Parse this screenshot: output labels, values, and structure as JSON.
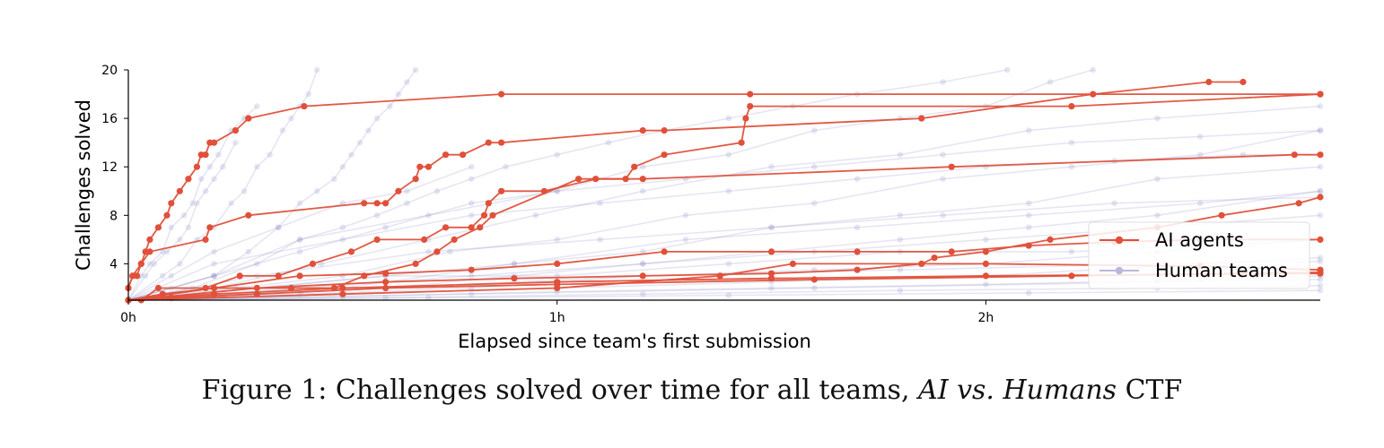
{
  "chart_data": {
    "type": "line",
    "xlabel": "Elapsed since team's first submission",
    "ylabel": "Challenges solved",
    "x_unit": "hours",
    "xlim": [
      0,
      2.78
    ],
    "ylim": [
      1,
      20
    ],
    "x_ticks": [
      {
        "value": 0,
        "label": "0h"
      },
      {
        "value": 1,
        "label": "1h"
      },
      {
        "value": 2,
        "label": "2h"
      }
    ],
    "y_ticks": [
      4,
      8,
      12,
      16,
      20
    ],
    "grid": false,
    "legend_position": "lower-right",
    "series_colors": {
      "ai": "#e0503a",
      "human": "#8e8ec8"
    },
    "legend": [
      {
        "label": "AI agents",
        "color": "#e0503a"
      },
      {
        "label": "Human teams",
        "color": "#b8b8dc"
      }
    ],
    "series": [
      {
        "name": "AI agents",
        "group": "ai",
        "x": [
          0,
          0.01,
          0.03,
          0.04,
          0.05,
          0.07,
          0.09,
          0.1,
          0.12,
          0.14,
          0.16,
          0.17,
          0.18,
          0.19,
          0.2,
          0.25,
          0.28
        ],
        "y": [
          2,
          3,
          4,
          5,
          6,
          7,
          8,
          9,
          10,
          11,
          12,
          13,
          13,
          14,
          14,
          15,
          16
        ]
      },
      {
        "name": "AI agents",
        "group": "ai",
        "x": [
          0.28,
          0.41,
          0.87,
          1.45,
          2.78
        ],
        "y": [
          16,
          17,
          18,
          18,
          18
        ]
      },
      {
        "name": "AI agents",
        "group": "ai",
        "x": [
          0,
          0.01,
          0.02,
          0.03,
          0.05,
          0.18,
          0.19,
          0.28,
          0.55,
          0.58,
          0.6,
          0.63,
          0.67,
          0.68,
          0.7,
          0.74,
          0.78,
          0.84,
          0.87,
          1.2,
          1.25,
          1.85,
          2.25,
          2.52,
          2.6
        ],
        "y": [
          2,
          3,
          3,
          4,
          5,
          6,
          7,
          8,
          9,
          9,
          9,
          10,
          11,
          12,
          12,
          13,
          13,
          14,
          14,
          15,
          15,
          16,
          18,
          19,
          19
        ]
      },
      {
        "name": "AI agents",
        "group": "ai",
        "x": [
          0,
          0.03,
          0.07,
          0.18,
          0.26,
          0.35,
          0.43,
          0.52,
          0.58,
          0.69,
          0.74,
          0.8,
          0.83,
          0.84,
          0.87,
          0.97,
          1.09,
          1.16,
          1.18,
          1.25,
          1.43,
          1.44,
          1.45,
          2.2,
          2.78
        ],
        "y": [
          1,
          1,
          2,
          2,
          3,
          3,
          4,
          5,
          6,
          6,
          7,
          7,
          8,
          9,
          10,
          10,
          11,
          11,
          12,
          13,
          14,
          16,
          17,
          17,
          18
        ]
      },
      {
        "name": "AI agents",
        "group": "ai",
        "x": [
          0,
          0.08,
          0.2,
          0.38,
          0.48,
          0.55,
          0.67,
          0.72,
          0.76,
          0.82,
          0.85,
          1.05,
          1.2,
          1.92,
          2.72,
          2.78
        ],
        "y": [
          1,
          1.5,
          2,
          2,
          2,
          3,
          4,
          5,
          6,
          7,
          8,
          11,
          11,
          12,
          13,
          13
        ]
      },
      {
        "name": "AI agents",
        "group": "ai",
        "x": [
          0,
          0.2,
          0.4,
          0.6,
          0.8,
          1.0,
          1.25,
          1.5,
          1.7,
          1.92,
          2.1,
          2.3,
          2.5,
          2.78
        ],
        "y": [
          1,
          2,
          3,
          3.2,
          3.5,
          4,
          5,
          5,
          5,
          5,
          5.5,
          5.8,
          6,
          6
        ]
      },
      {
        "name": "AI agents",
        "group": "ai",
        "x": [
          0,
          0.3,
          0.6,
          0.9,
          1.2,
          1.5,
          1.7,
          1.85,
          1.88,
          2.0,
          2.15,
          2.4,
          2.55,
          2.73,
          2.78
        ],
        "y": [
          1,
          2,
          2.5,
          2.8,
          3,
          3.2,
          3.5,
          4,
          4.5,
          5,
          6,
          7,
          8,
          9,
          9.5
        ]
      },
      {
        "name": "AI agents",
        "group": "ai",
        "x": [
          0,
          0.5,
          1.0,
          1.38,
          1.55,
          2.0,
          2.5,
          2.78
        ],
        "y": [
          1,
          1.5,
          2,
          3,
          4,
          4,
          3.8,
          3.5
        ]
      },
      {
        "name": "AI agents",
        "group": "ai",
        "x": [
          0,
          0.2,
          0.5,
          1.0,
          1.5,
          2.0,
          2.78
        ],
        "y": [
          1,
          1.5,
          2,
          2.5,
          2.8,
          3,
          3.2
        ]
      },
      {
        "name": "AI agents",
        "group": "ai",
        "x": [
          0,
          0.1,
          0.3,
          0.6,
          1.0,
          1.6,
          2.2,
          2.78
        ],
        "y": [
          1,
          1.2,
          1.5,
          2,
          2.3,
          2.7,
          3,
          3.3
        ]
      },
      {
        "name": "Human teams",
        "group": "human",
        "x": [
          0,
          0.03,
          0.05,
          0.08,
          0.1,
          0.13,
          0.15,
          0.17,
          0.19,
          0.21,
          0.24,
          0.27,
          0.3
        ],
        "y": [
          1,
          3,
          4,
          5,
          7,
          8,
          9,
          11,
          12,
          13,
          15,
          16,
          17
        ]
      },
      {
        "name": "Human teams",
        "group": "human",
        "x": [
          0,
          0.04,
          0.06,
          0.09,
          0.12,
          0.14,
          0.16,
          0.18,
          0.2,
          0.22,
          0.25
        ],
        "y": [
          1,
          3,
          4,
          5,
          6,
          7,
          9,
          10,
          11,
          12,
          14
        ]
      },
      {
        "name": "Human teams",
        "group": "human",
        "x": [
          0,
          0.08,
          0.12,
          0.16,
          0.2,
          0.24,
          0.27,
          0.3,
          0.33,
          0.36,
          0.38,
          0.4,
          0.42,
          0.44
        ],
        "y": [
          1,
          3,
          4,
          6,
          7,
          9,
          10,
          12,
          13,
          15,
          16,
          17,
          18,
          20
        ]
      },
      {
        "name": "Human teams",
        "group": "human",
        "x": [
          0,
          0.1,
          0.2,
          0.28,
          0.35,
          0.4,
          0.44,
          0.48,
          0.5,
          0.52,
          0.54,
          0.56,
          0.58,
          0.61,
          0.63,
          0.65,
          0.67
        ],
        "y": [
          1,
          2,
          3,
          5,
          7,
          9,
          10,
          11,
          12,
          13,
          14,
          15,
          16,
          17,
          18,
          19,
          20
        ]
      },
      {
        "name": "Human teams",
        "group": "human",
        "x": [
          0,
          0.15,
          0.3,
          0.4,
          0.5,
          0.58,
          0.65,
          0.72,
          0.8,
          0.88,
          1.0,
          1.12,
          1.25,
          1.4,
          1.55,
          1.7,
          1.9,
          2.05
        ],
        "y": [
          1,
          2,
          4,
          6,
          7,
          8,
          9,
          10,
          11,
          12,
          13,
          14,
          15,
          16,
          17,
          18,
          19,
          20
        ]
      },
      {
        "name": "Human teams",
        "group": "human",
        "x": [
          0,
          0.2,
          0.4,
          0.6,
          0.8,
          1.0,
          1.2,
          1.4,
          1.6,
          1.8,
          2.0,
          2.15,
          2.25
        ],
        "y": [
          1,
          3,
          5,
          7,
          9,
          10,
          12,
          13,
          15,
          16,
          17,
          19,
          20
        ]
      },
      {
        "name": "Human teams",
        "group": "human",
        "x": [
          0,
          0.2,
          0.45,
          0.7,
          0.95,
          1.2,
          1.5,
          1.8,
          2.1,
          2.4,
          2.78
        ],
        "y": [
          1,
          2,
          4,
          6,
          8,
          10,
          12,
          13,
          15,
          16,
          17
        ]
      },
      {
        "name": "Human teams",
        "group": "human",
        "x": [
          0,
          0.25,
          0.5,
          0.75,
          1.0,
          1.3,
          1.6,
          1.9,
          2.2,
          2.5,
          2.78
        ],
        "y": [
          1,
          2,
          3,
          5,
          6,
          8,
          9,
          11,
          12,
          13,
          15
        ]
      },
      {
        "name": "Human teams",
        "group": "human",
        "x": [
          0,
          0.3,
          0.6,
          0.9,
          1.2,
          1.5,
          1.8,
          2.1,
          2.4,
          2.78
        ],
        "y": [
          1,
          2,
          3,
          4,
          5,
          7,
          8,
          9,
          11,
          12
        ]
      },
      {
        "name": "Human teams",
        "group": "human",
        "x": [
          0,
          0.3,
          0.6,
          0.9,
          1.2,
          1.5,
          1.8,
          2.1,
          2.4,
          2.78
        ],
        "y": [
          1,
          1.5,
          2,
          3,
          4,
          5,
          6,
          7,
          8,
          10
        ]
      },
      {
        "name": "Human teams",
        "group": "human",
        "x": [
          0,
          0.4,
          0.8,
          1.2,
          1.6,
          2.0,
          2.4,
          2.78
        ],
        "y": [
          1,
          2,
          3,
          4,
          5,
          6,
          7,
          8
        ]
      },
      {
        "name": "Human teams",
        "group": "human",
        "x": [
          0,
          0.4,
          0.8,
          1.2,
          1.6,
          2.0,
          2.4,
          2.78
        ],
        "y": [
          1,
          1.5,
          2,
          3,
          3.5,
          4,
          5,
          6
        ]
      },
      {
        "name": "Human teams",
        "group": "human",
        "x": [
          0,
          0.5,
          1.0,
          1.5,
          2.0,
          2.5,
          2.78
        ],
        "y": [
          1,
          1.5,
          2,
          2.5,
          3,
          4,
          4.5
        ]
      },
      {
        "name": "Human teams",
        "group": "human",
        "x": [
          0,
          0.5,
          1.0,
          1.5,
          2.0,
          2.5,
          2.78
        ],
        "y": [
          1,
          1.3,
          1.7,
          2,
          2.3,
          2.7,
          3
        ]
      },
      {
        "name": "Human teams",
        "group": "human",
        "x": [
          0,
          0.6,
          1.2,
          1.8,
          2.4,
          2.78
        ],
        "y": [
          1,
          1.2,
          1.5,
          1.8,
          2,
          2.2
        ]
      },
      {
        "name": "Human teams",
        "group": "human",
        "x": [
          0,
          0.7,
          1.4,
          2.1,
          2.78
        ],
        "y": [
          1,
          1.2,
          1.4,
          1.6,
          1.8
        ]
      },
      {
        "name": "Human teams",
        "group": "human",
        "x": [
          0,
          0.6,
          1.2,
          1.8,
          2.4,
          2.78
        ],
        "y": [
          1,
          2,
          3,
          3.5,
          4,
          4.2
        ]
      },
      {
        "name": "Human teams",
        "group": "human",
        "x": [
          0,
          0.3,
          0.7,
          1.1,
          1.5,
          1.9,
          2.3,
          2.78
        ],
        "y": [
          1,
          3,
          5,
          6,
          7,
          8,
          9,
          9.5
        ]
      },
      {
        "name": "Human teams",
        "group": "human",
        "x": [
          0,
          0.2,
          0.5,
          0.8,
          1.1,
          1.4,
          1.7,
          2.0,
          2.3,
          2.6,
          2.78
        ],
        "y": [
          1,
          4,
          6,
          8,
          9,
          10,
          11,
          12,
          12.5,
          13,
          13
        ]
      },
      {
        "name": "Human teams",
        "group": "human",
        "x": [
          0,
          0.2,
          0.4,
          0.7,
          1.0,
          1.3,
          1.6,
          1.9,
          2.2,
          2.5,
          2.78
        ],
        "y": [
          1,
          3,
          6,
          8,
          10,
          11,
          12,
          13,
          14,
          14.5,
          15
        ]
      },
      {
        "name": "Human teams",
        "group": "human",
        "x": [
          0,
          0.1,
          0.2,
          0.35,
          0.5,
          0.65,
          0.8
        ],
        "y": [
          1,
          3,
          5,
          7,
          9,
          10,
          12
        ]
      },
      {
        "name": "Human teams",
        "group": "human",
        "x": [
          0,
          0.5,
          0.9,
          1.3,
          1.7,
          2.1,
          2.5,
          2.78
        ],
        "y": [
          1,
          2,
          4,
          6,
          7,
          8,
          9,
          10
        ]
      },
      {
        "name": "Human teams",
        "group": "human",
        "x": [
          0,
          0.8,
          1.6,
          2.4,
          2.78
        ],
        "y": [
          1,
          1.5,
          2,
          2.5,
          2.7
        ]
      },
      {
        "name": "Human teams",
        "group": "human",
        "x": [
          0,
          0.3,
          0.6,
          1.0,
          1.4,
          1.8,
          2.2,
          2.78
        ],
        "y": [
          1,
          2,
          3,
          3,
          4,
          5,
          5,
          6
        ]
      }
    ]
  },
  "caption": {
    "prefix": "Figure 1: Challenges solved over time for all teams, ",
    "emphasis": "AI vs. Humans",
    "suffix": " CTF"
  }
}
